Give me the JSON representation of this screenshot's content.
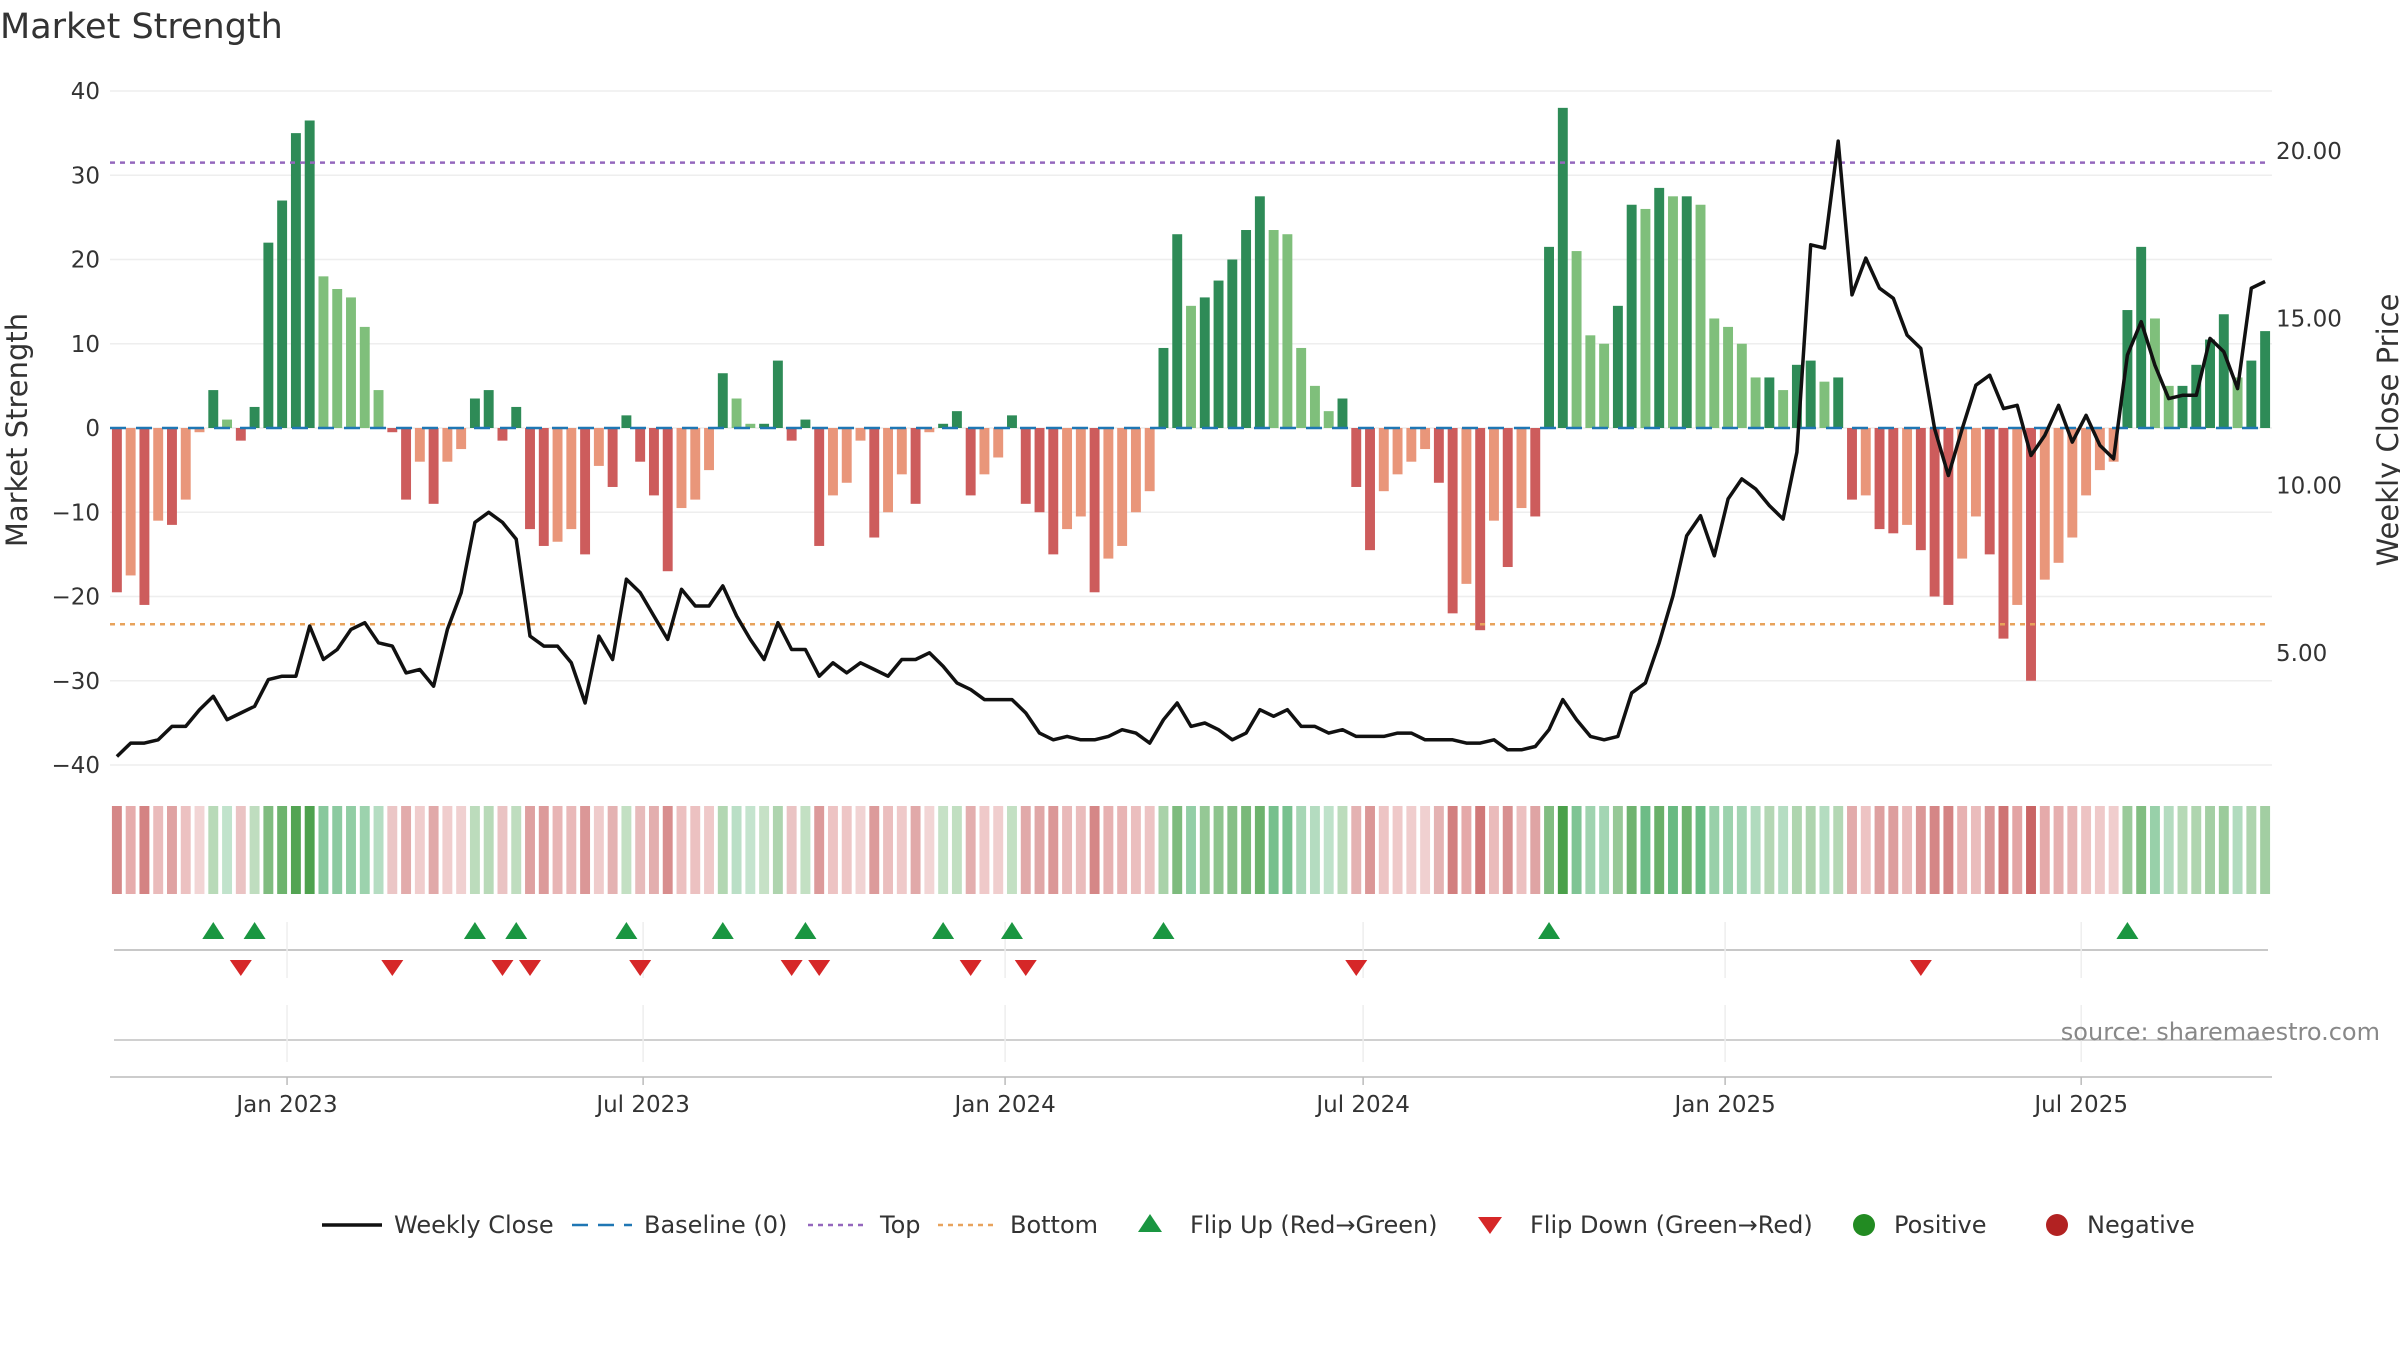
{
  "chart_data": {
    "type": "bar",
    "title": "Market Strength",
    "ylabel": "Market Strength",
    "y2label": "Weekly Close Price",
    "ylim": [
      -40,
      40
    ],
    "y2lim": [
      0.3,
      20.9
    ],
    "yticks": [
      "40",
      "30",
      "20",
      "10",
      "0",
      "−10",
      "−20",
      "−30",
      "−40"
    ],
    "y2ticks": [
      "20.00",
      "15.00",
      "10.00",
      "5.00"
    ],
    "x_ticks": [
      "Jan 2023",
      "Jul 2023",
      "Jan 2024",
      "Jul 2024",
      "Jan 2025",
      "Jul 2025"
    ],
    "x_range": [
      "2022-10-03",
      "2025-10-06"
    ],
    "top_line": 31.5,
    "bottom_line": -23.3,
    "strength_values": [
      -19.5,
      -17.5,
      -21,
      -11,
      -11.5,
      -8.5,
      -0.5,
      4.5,
      1,
      -1.5,
      2.5,
      22,
      27,
      35,
      36.5,
      18,
      16.5,
      15.5,
      12,
      4.5,
      -0.5,
      -8.5,
      -4,
      -9,
      -4,
      -2.5,
      3.5,
      4.5,
      -1.5,
      2.5,
      -12,
      -14,
      -13.5,
      -12,
      -15,
      -4.5,
      -7,
      1.5,
      -4,
      -8,
      -17,
      -9.5,
      -8.5,
      -5,
      6.5,
      3.5,
      0.5,
      0.5,
      8,
      -1.5,
      1,
      -14,
      -8,
      -6.5,
      -1.5,
      -13,
      -10,
      -5.5,
      -9,
      -0.5,
      0.5,
      2,
      -8,
      -5.5,
      -3.5,
      1.5,
      -9,
      -10,
      -15,
      -12,
      -10.5,
      -19.5,
      -15.5,
      -14,
      -10,
      -7.5,
      9.5,
      23,
      14.5,
      15.5,
      17.5,
      20,
      23.5,
      27.5,
      23.5,
      23,
      9.5,
      5,
      2,
      3.5,
      -7,
      -14.5,
      -7.5,
      -5.5,
      -4,
      -2.5,
      -6.5,
      -22,
      -18.5,
      -24,
      -11,
      -16.5,
      -9.5,
      -10.5,
      21.5,
      38,
      21,
      11,
      10,
      14.5,
      26.5,
      26,
      28.5,
      27.5,
      27.5,
      26.5,
      13,
      12,
      10,
      6,
      6,
      4.5,
      7.5,
      8,
      5.5,
      6,
      -8.5,
      -8,
      -12,
      -12.5,
      -11.5,
      -14.5,
      -20,
      -21,
      -15.5,
      -10.5,
      -15,
      -25,
      -21,
      -30,
      -18,
      -16,
      -13,
      -8,
      -5,
      -4,
      14,
      21.5,
      13,
      5,
      5,
      7.5,
      10.5,
      13.5,
      6,
      8,
      11.5
    ],
    "close_values": [
      1.9,
      2.3,
      2.3,
      2.4,
      2.8,
      2.8,
      3.3,
      3.7,
      3.0,
      3.2,
      3.4,
      4.2,
      4.3,
      4.3,
      5.8,
      4.8,
      5.1,
      5.7,
      5.9,
      5.3,
      5.2,
      4.4,
      4.5,
      4.0,
      5.7,
      6.8,
      8.9,
      9.2,
      8.9,
      8.4,
      5.5,
      5.2,
      5.2,
      4.7,
      3.5,
      5.5,
      4.8,
      7.2,
      6.8,
      6.1,
      5.4,
      6.9,
      6.4,
      6.4,
      7.0,
      6.1,
      5.4,
      4.8,
      5.9,
      5.1,
      5.1,
      4.3,
      4.7,
      4.4,
      4.7,
      4.5,
      4.3,
      4.8,
      4.8,
      5.0,
      4.6,
      4.1,
      3.9,
      3.6,
      3.6,
      3.6,
      3.2,
      2.6,
      2.4,
      2.5,
      2.4,
      2.4,
      2.5,
      2.7,
      2.6,
      2.3,
      3.0,
      3.5,
      2.8,
      2.9,
      2.7,
      2.4,
      2.6,
      3.3,
      3.1,
      3.3,
      2.8,
      2.8,
      2.6,
      2.7,
      2.5,
      2.5,
      2.5,
      2.6,
      2.6,
      2.4,
      2.4,
      2.4,
      2.3,
      2.3,
      2.4,
      2.1,
      2.1,
      2.2,
      2.7,
      3.6,
      3.0,
      2.5,
      2.4,
      2.5,
      3.8,
      4.1,
      5.3,
      6.7,
      8.5,
      9.1,
      7.9,
      9.6,
      10.2,
      9.9,
      9.4,
      9.0,
      11.0,
      17.2,
      17.1,
      20.3,
      15.7,
      16.8,
      15.9,
      15.6,
      14.5,
      14.1,
      11.7,
      10.3,
      11.7,
      13.0,
      13.3,
      12.3,
      12.4,
      10.9,
      11.5,
      12.4,
      11.3,
      12.1,
      11.2,
      10.8,
      13.9,
      14.9,
      13.6,
      12.6,
      12.7,
      12.7,
      14.4,
      14.0,
      12.9,
      15.9,
      16.1
    ],
    "flip_up": [
      7,
      10,
      26,
      29,
      37,
      44,
      50,
      60,
      65,
      76,
      104,
      146
    ],
    "flip_down": [
      9,
      20,
      28,
      30,
      38,
      49,
      51,
      62,
      66,
      90,
      131
    ],
    "source_text": "source: sharemaestro.com",
    "legend": [
      {
        "label": "Weekly Close",
        "kind": "line"
      },
      {
        "label": "Baseline (0)",
        "kind": "dash"
      },
      {
        "label": "Top",
        "kind": "dot-purple"
      },
      {
        "label": "Bottom",
        "kind": "dot-orange"
      },
      {
        "label": "Flip Up (Red→Green)",
        "kind": "tri-up"
      },
      {
        "label": "Flip Down (Green→Red)",
        "kind": "tri-down"
      },
      {
        "label": "Positive",
        "kind": "dot-green"
      },
      {
        "label": "Negative",
        "kind": "dot-red"
      }
    ],
    "colors": {
      "strong_green": "#2e8b57",
      "light_green": "#7fbf7b",
      "strong_red": "#cd5c5c",
      "light_red": "#e9967a",
      "close_line": "#111111",
      "top_line": "#9467bd",
      "bottom_line": "#e8a35c",
      "baseline": "#1f77b4",
      "flip_up": "#1a9641",
      "flip_down": "#d62728",
      "positive": "#228b22",
      "negative": "#b22222"
    }
  }
}
